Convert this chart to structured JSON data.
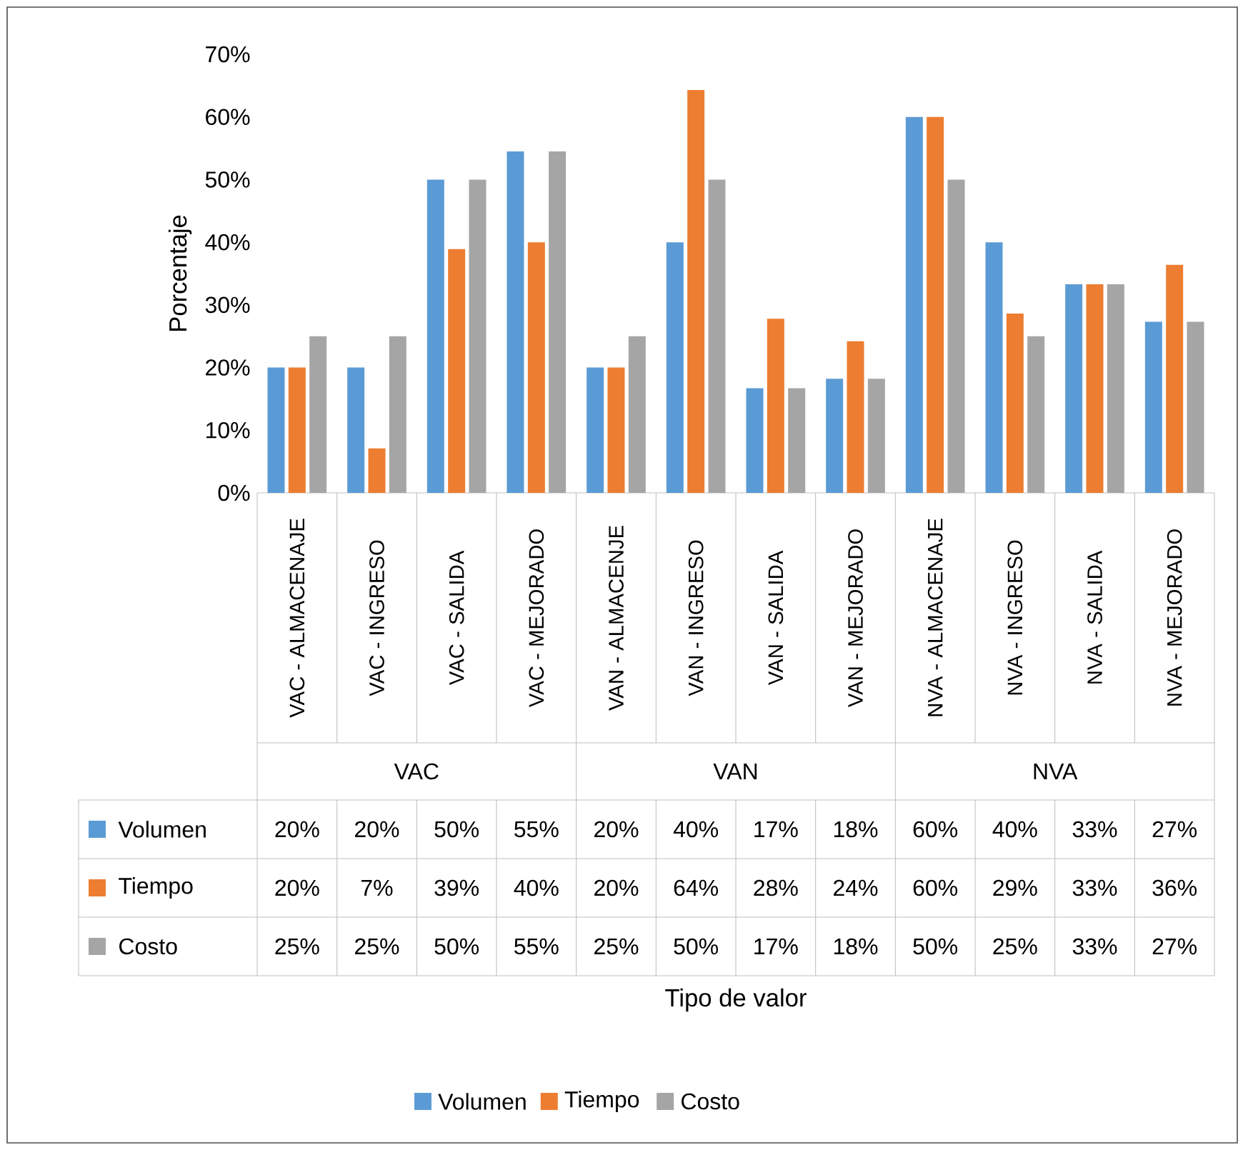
{
  "chart_data": {
    "type": "bar",
    "ylabel": "Porcentaje",
    "categories": [
      "VAC - ALMACENAJE",
      "VAC - INGRESO",
      "VAC - SALIDA",
      "VAC - MEJORADO",
      "VAN - ALMACENJE",
      "VAN - INGRESO",
      "VAN - SALIDA",
      "VAN - MEJORADO",
      "NVA - ALMACENAJE",
      "NVA - INGRESO",
      "NVA - SALIDA",
      "NVA - MEJORADO"
    ],
    "series": [
      {
        "name": "Volumen",
        "color": "#5b9bd5",
        "values": [
          20,
          20,
          50,
          54.5,
          20,
          40,
          16.7,
          18.2,
          60,
          40,
          33.3,
          27.3
        ],
        "value_labels": [
          "20%",
          "20%",
          "50%",
          "55%",
          "20%",
          "40%",
          "17%",
          "18%",
          "60%",
          "40%",
          "33%",
          "27%"
        ]
      },
      {
        "name": "Tiempo",
        "color": "#ed7d31",
        "values": [
          20,
          7.1,
          38.9,
          40,
          20,
          64.3,
          27.8,
          24.2,
          60,
          28.6,
          33.3,
          36.4
        ],
        "value_labels": [
          "20%",
          "7%",
          "39%",
          "40%",
          "20%",
          "64%",
          "28%",
          "24%",
          "60%",
          "29%",
          "33%",
          "36%"
        ]
      },
      {
        "name": "Costo",
        "color": "#a5a5a5",
        "values": [
          25,
          25,
          50,
          54.5,
          25,
          50,
          16.7,
          18.2,
          50,
          25,
          33.3,
          27.3
        ],
        "value_labels": [
          "25%",
          "25%",
          "50%",
          "55%",
          "25%",
          "50%",
          "17%",
          "18%",
          "50%",
          "25%",
          "33%",
          "27%"
        ]
      }
    ],
    "annotations": [
      "VAC",
      "VAN",
      "NVA",
      "Tipo de valor"
    ],
    "ylim": [
      0,
      70
    ],
    "yticks": [
      {
        "value": 0,
        "label": "0%"
      },
      {
        "value": 10,
        "label": "10%"
      },
      {
        "value": 20,
        "label": "20%"
      },
      {
        "value": 30,
        "label": "30%"
      },
      {
        "value": 40,
        "label": "40%"
      },
      {
        "value": 50,
        "label": "50%"
      },
      {
        "value": 60,
        "label": "60%"
      },
      {
        "value": 70,
        "label": "70%"
      }
    ],
    "grid": false,
    "legend": "bottom"
  }
}
